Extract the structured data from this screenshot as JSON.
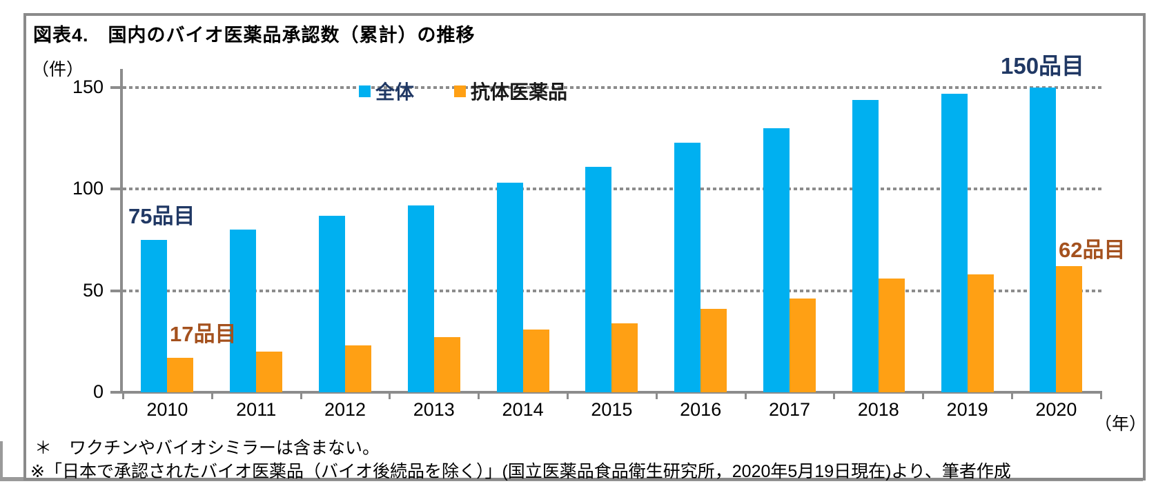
{
  "figure": {
    "title": "図表4.　国内のバイオ医薬品承認数（累計）の推移",
    "y_axis_unit_label": "（件）",
    "x_axis_unit_label": "（年）",
    "footnotes": [
      "＊　ワクチンやバイオシミラーは含まない。",
      "※「日本で承認されたバイオ医薬品（バイオ後続品を除く）」(国立医薬品食品衛生研究所，2020年5月19日現在)より、筆者作成"
    ]
  },
  "chart_data": {
    "type": "bar",
    "title": "図表4.　国内のバイオ医薬品承認数（累計）の推移",
    "categories": [
      "2010",
      "2011",
      "2012",
      "2013",
      "2014",
      "2015",
      "2016",
      "2017",
      "2018",
      "2019",
      "2020"
    ],
    "series": [
      {
        "name": "全体",
        "color": "#00b0f0",
        "label_color": "#203864",
        "values": [
          75,
          80,
          87,
          92,
          103,
          111,
          123,
          130,
          144,
          147,
          150
        ]
      },
      {
        "name": "抗体医薬品",
        "color": "#ffa014",
        "label_color": "#1a1a1a",
        "values": [
          17,
          20,
          23,
          27,
          31,
          34,
          41,
          46,
          56,
          58,
          62
        ]
      }
    ],
    "ylabel": "（件）",
    "xlabel": "（年）",
    "ylim": [
      0,
      150
    ],
    "yticks": [
      0,
      50,
      100,
      150
    ],
    "grid": "horizontal-dotted",
    "legend_position": "top-center",
    "annotations": [
      {
        "text": "75品目",
        "series": "全体",
        "category": "2010",
        "color": "#203864"
      },
      {
        "text": "17品目",
        "series": "抗体医薬品",
        "category": "2010",
        "color": "#a4511e"
      },
      {
        "text": "150品目",
        "series": "全体",
        "category": "2020",
        "color": "#203864"
      },
      {
        "text": "62品目",
        "series": "抗体医薬品",
        "category": "2020",
        "color": "#a4511e"
      }
    ]
  },
  "colors": {
    "axis_gray": "#8c8c8c",
    "box_border_gray": "#8a8a8a",
    "total_bar_blue": "#00b0f0",
    "antibody_bar_orange": "#ffa014",
    "total_text_navy": "#203864",
    "antibody_text_brown": "#a4511e"
  }
}
